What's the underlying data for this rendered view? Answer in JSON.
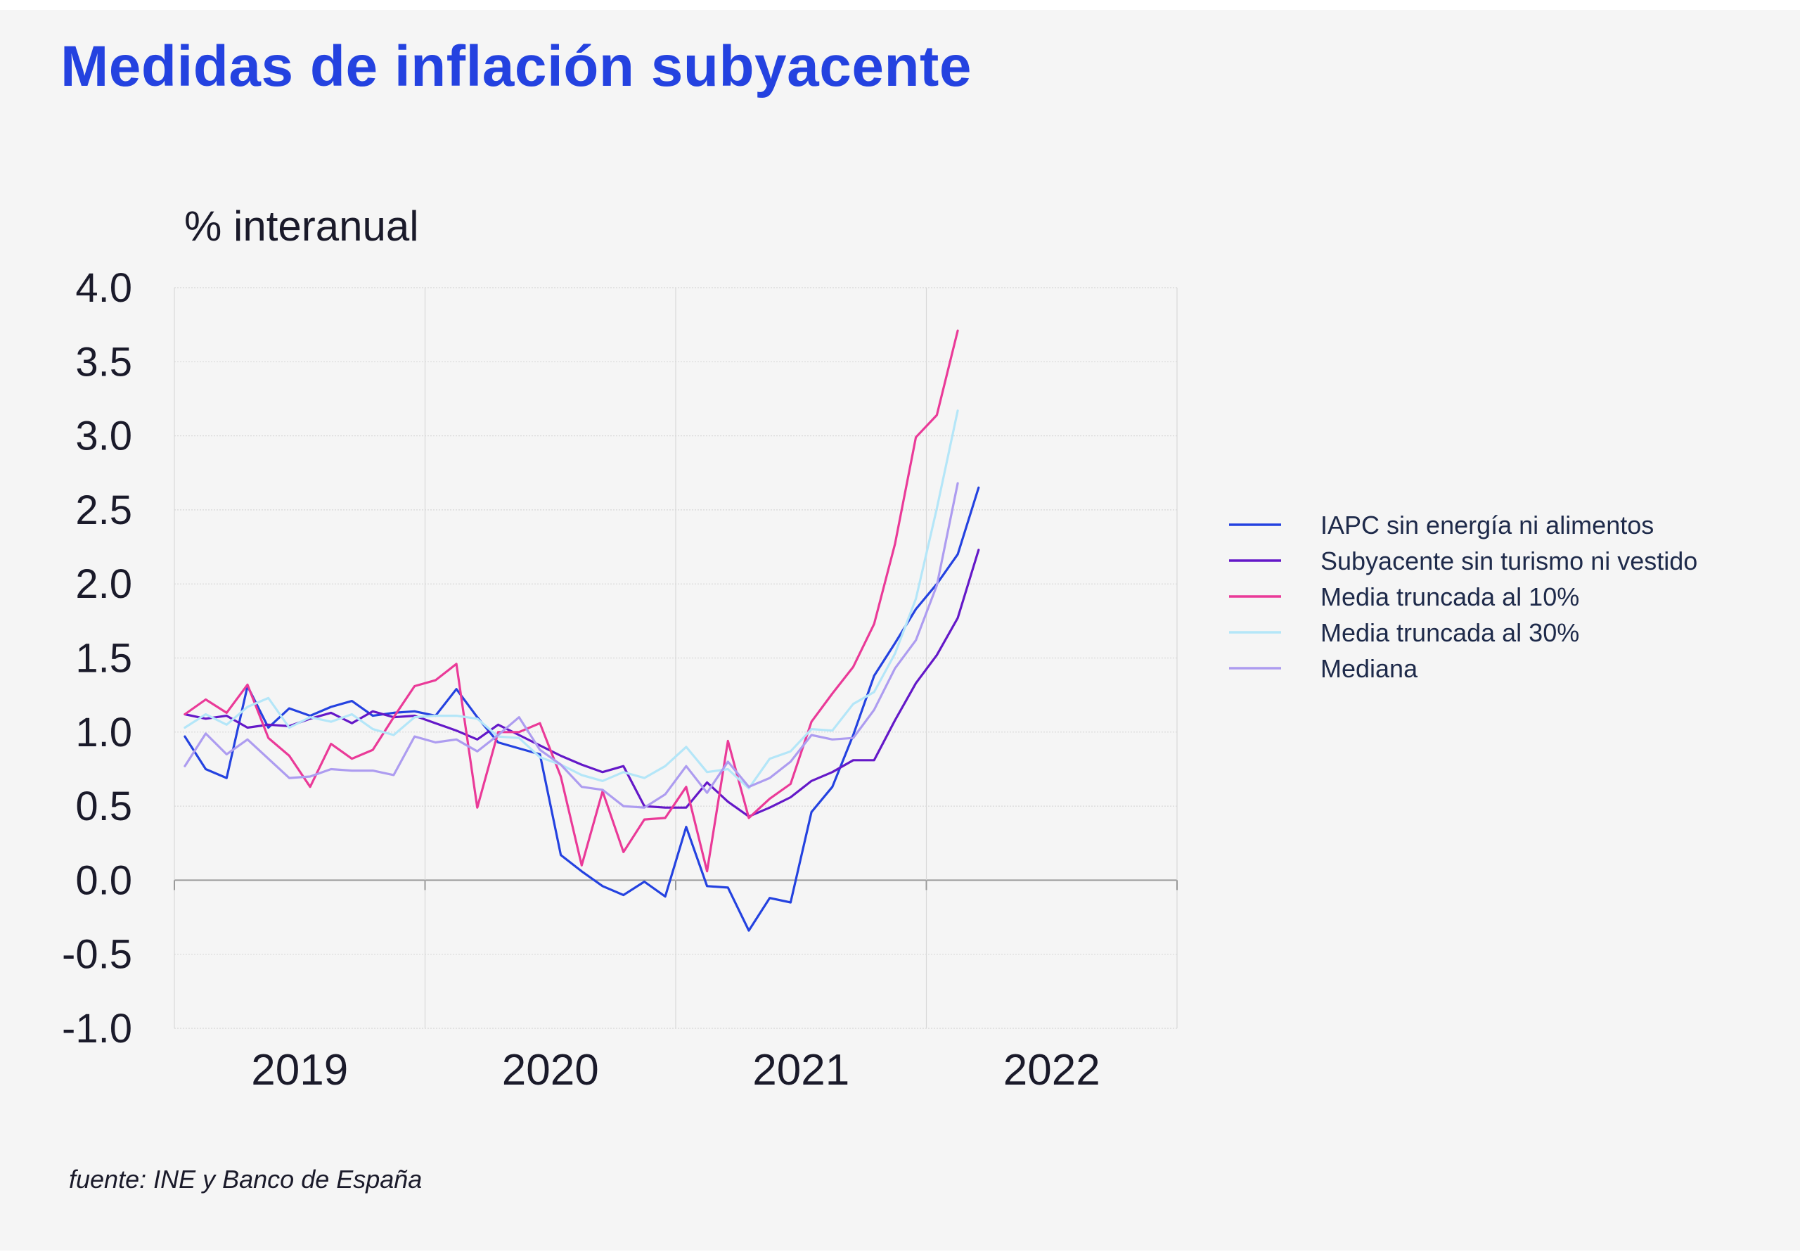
{
  "title": "Medidas de inflación subyacente",
  "source": "fuente: INE y Banco de España",
  "chart_data": {
    "type": "line",
    "title": "Medidas de inflación subyacente",
    "ylabel": "% interanual",
    "xlabel": "",
    "ylim": [
      -1.0,
      4.0
    ],
    "yticks": [
      "4.0",
      "3.5",
      "3.0",
      "2.5",
      "2.0",
      "1.5",
      "1.0",
      "0.5",
      "0.0",
      "-0.5",
      "-1.0"
    ],
    "xlim": [
      "2019-01",
      "2022-12"
    ],
    "xtick_labels": [
      "2019",
      "2020",
      "2021",
      "2022"
    ],
    "grid": true,
    "legend_position": "right",
    "x": [
      "2019-01",
      "2019-02",
      "2019-03",
      "2019-04",
      "2019-05",
      "2019-06",
      "2019-07",
      "2019-08",
      "2019-09",
      "2019-10",
      "2019-11",
      "2019-12",
      "2020-01",
      "2020-02",
      "2020-03",
      "2020-04",
      "2020-05",
      "2020-06",
      "2020-07",
      "2020-08",
      "2020-09",
      "2020-10",
      "2020-11",
      "2020-12",
      "2021-01",
      "2021-02",
      "2021-03",
      "2021-04",
      "2021-05",
      "2021-06",
      "2021-07",
      "2021-08",
      "2021-09",
      "2021-10",
      "2021-11",
      "2021-12",
      "2022-01",
      "2022-02",
      "2022-03",
      "2022-04",
      "2022-05",
      "2022-06",
      "2022-07",
      "2022-08",
      "2022-09",
      "2022-10",
      "2022-11",
      "2022-12"
    ],
    "series": [
      {
        "name": "IAPC sin energía ni alimentos",
        "color": "#2442e0",
        "values": [
          0.97,
          0.75,
          0.69,
          1.31,
          1.03,
          1.16,
          1.11,
          1.17,
          1.21,
          1.11,
          1.13,
          1.14,
          1.11,
          1.29,
          1.1,
          0.93,
          0.89,
          0.85,
          0.17,
          0.06,
          -0.04,
          -0.1,
          -0.01,
          -0.11,
          0.36,
          -0.04,
          -0.05,
          -0.34,
          -0.12,
          -0.15,
          0.46,
          0.63,
          0.98,
          1.38,
          1.6,
          1.83,
          2.0,
          2.2,
          2.65,
          null,
          null,
          null,
          null,
          null,
          null,
          null,
          null,
          null
        ]
      },
      {
        "name": "Subyacente sin turismo ni vestido",
        "color": "#6418c8",
        "values": [
          1.12,
          1.09,
          1.11,
          1.03,
          1.05,
          1.04,
          1.09,
          1.13,
          1.06,
          1.14,
          1.1,
          1.11,
          1.06,
          1.01,
          0.95,
          1.05,
          0.98,
          0.91,
          0.84,
          0.78,
          0.73,
          0.77,
          0.5,
          0.49,
          0.49,
          0.66,
          0.53,
          0.43,
          0.49,
          0.56,
          0.67,
          0.73,
          0.81,
          0.81,
          1.08,
          1.33,
          1.52,
          1.77,
          2.23,
          null,
          null,
          null,
          null,
          null,
          null,
          null,
          null,
          null
        ]
      },
      {
        "name": "Media truncada al 10%",
        "color": "#ea3a98",
        "values": [
          1.12,
          1.22,
          1.13,
          1.32,
          0.96,
          0.84,
          0.63,
          0.92,
          0.82,
          0.88,
          1.1,
          1.31,
          1.35,
          1.46,
          0.49,
          1.0,
          1.0,
          1.06,
          0.7,
          0.1,
          0.6,
          0.19,
          0.41,
          0.42,
          0.63,
          0.06,
          0.94,
          0.42,
          0.55,
          0.65,
          1.07,
          1.26,
          1.44,
          1.73,
          2.27,
          2.99,
          3.14,
          3.71,
          null,
          null,
          null,
          null,
          null,
          null,
          null,
          null,
          null,
          null
        ]
      },
      {
        "name": "Media truncada al 30%",
        "color": "#b4e6f8",
        "values": [
          1.03,
          1.12,
          1.05,
          1.17,
          1.23,
          1.03,
          1.1,
          1.07,
          1.12,
          1.02,
          0.98,
          1.1,
          1.11,
          1.11,
          1.09,
          0.97,
          0.96,
          0.83,
          0.78,
          0.71,
          0.67,
          0.73,
          0.69,
          0.77,
          0.9,
          0.73,
          0.75,
          0.62,
          0.82,
          0.87,
          1.02,
          1.01,
          1.19,
          1.27,
          1.53,
          1.9,
          2.51,
          3.17,
          null,
          null,
          null,
          null,
          null,
          null,
          null,
          null,
          null,
          null
        ]
      },
      {
        "name": "Mediana",
        "color": "#ad9cf0",
        "values": [
          0.77,
          0.99,
          0.85,
          0.95,
          0.82,
          0.69,
          0.7,
          0.75,
          0.74,
          0.74,
          0.71,
          0.97,
          0.93,
          0.95,
          0.87,
          0.98,
          1.1,
          0.88,
          0.78,
          0.63,
          0.61,
          0.5,
          0.49,
          0.58,
          0.77,
          0.59,
          0.8,
          0.63,
          0.69,
          0.8,
          0.98,
          0.95,
          0.96,
          1.15,
          1.43,
          1.62,
          1.99,
          2.68,
          null,
          null,
          null,
          null,
          null,
          null,
          null,
          null,
          null,
          null
        ]
      }
    ]
  }
}
